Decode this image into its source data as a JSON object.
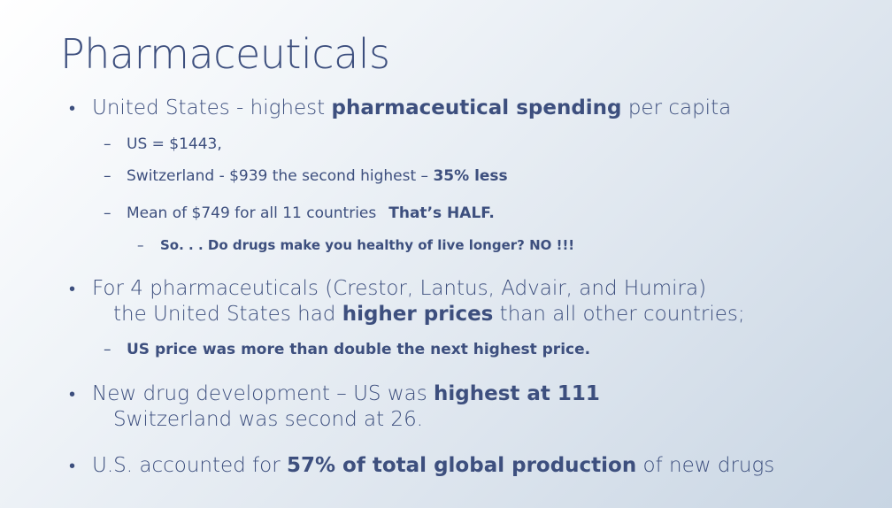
{
  "title": "Pharmaceuticals",
  "b1": {
    "pre": "United States - highest ",
    "bold": "pharmaceutical spending",
    "post": " per capita"
  },
  "s1": {
    "text": "US = $1443,"
  },
  "s2": {
    "pre": "Switzerland - $939 the second highest – ",
    "bold": "35% less"
  },
  "s3": {
    "pre": "Mean of $749 for all 11 countries",
    "bold": "That’s HALF."
  },
  "s4": {
    "bold": "So. . . Do drugs make you healthy of live longer?   NO !!!"
  },
  "b2": {
    "line1": "For 4 pharmaceuticals (Crestor, Lantus, Advair, and Humira)",
    "pre": "the United States had ",
    "bold": "higher prices",
    "post": " than all other countries;"
  },
  "s5": {
    "bold": "US price was more than double the next highest price."
  },
  "b3": {
    "pre": "New drug development – US was ",
    "bold": "highest at 111",
    "line2": "Switzerland was second at 26."
  },
  "b4": {
    "pre": "U.S. accounted for ",
    "bold": "57% of total global production",
    "post": " of new drugs"
  },
  "markers": {
    "bullet": "•",
    "dash": "–"
  }
}
